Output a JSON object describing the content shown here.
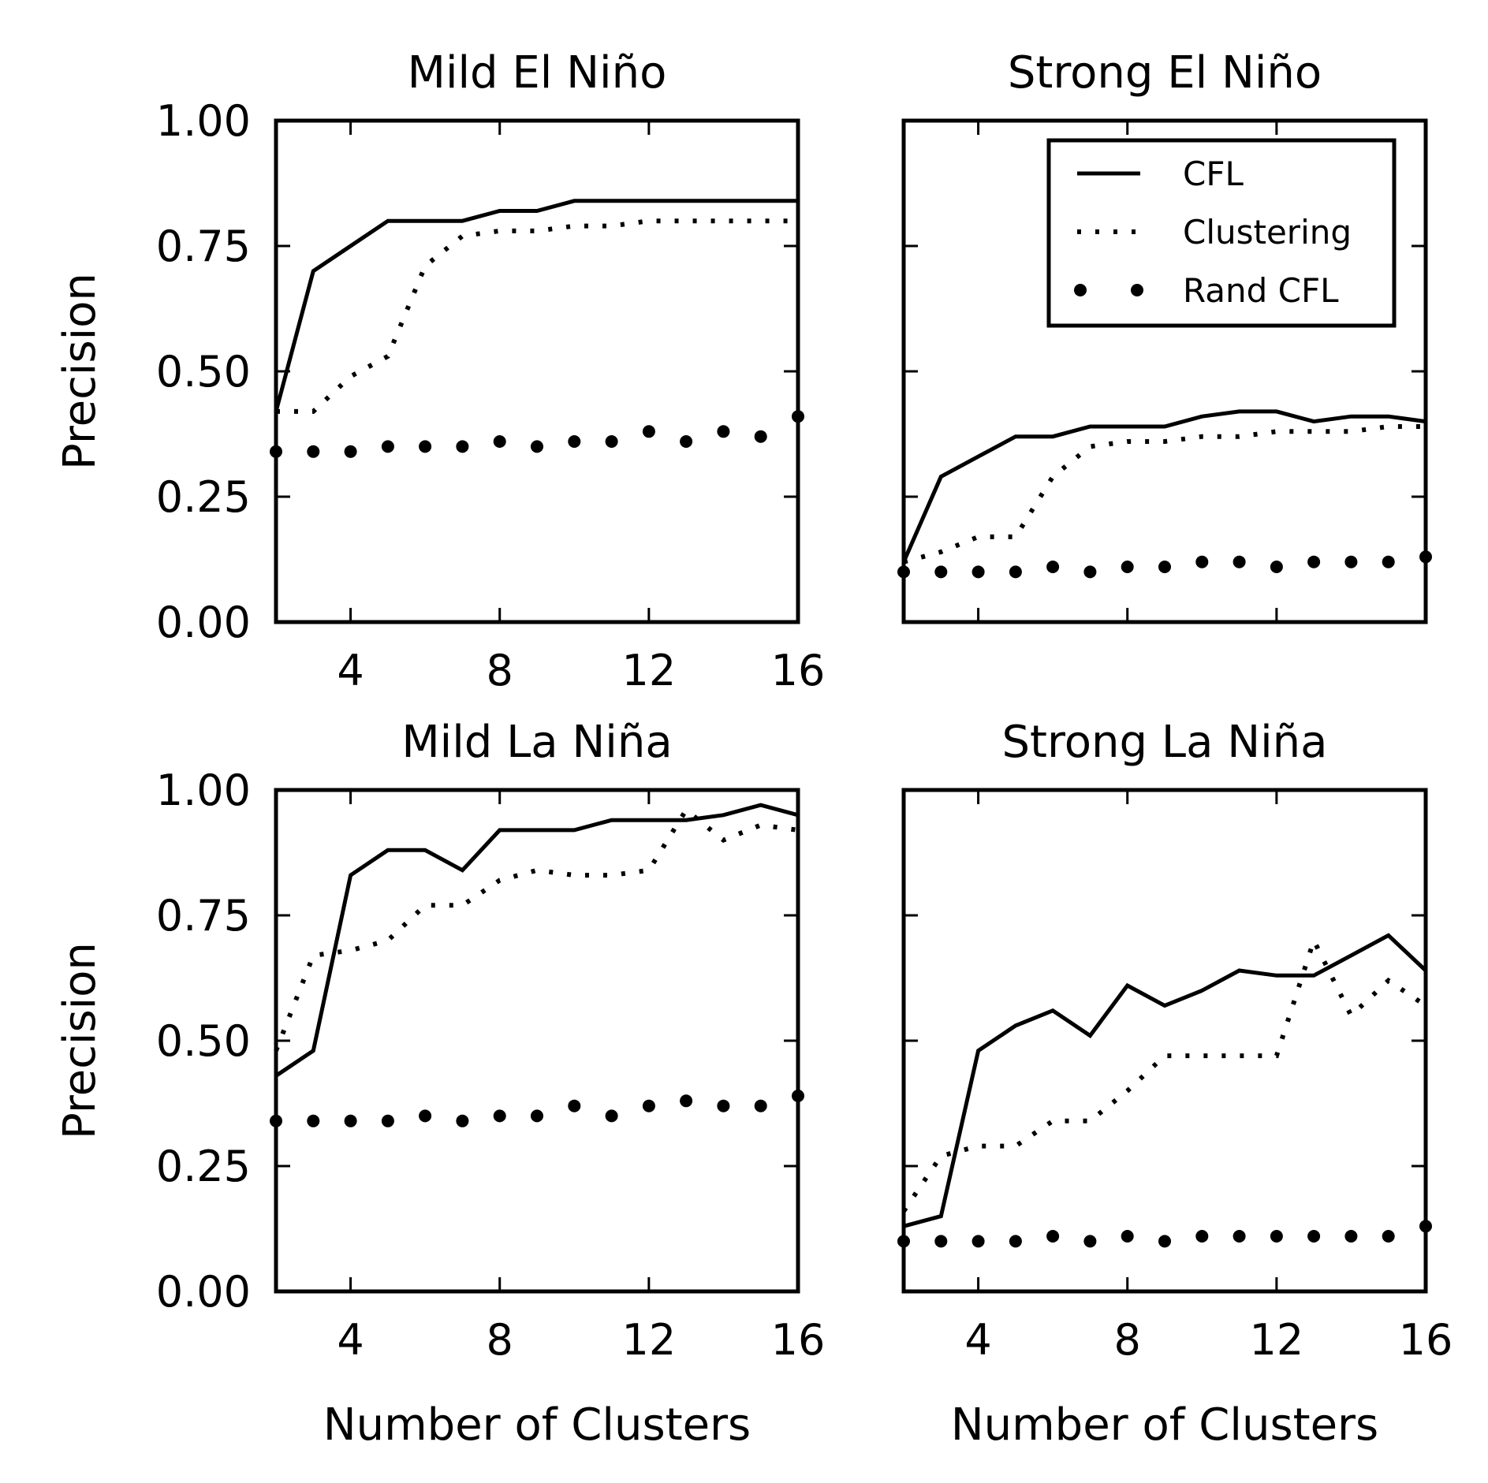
{
  "chart_data": [
    {
      "type": "line",
      "title": "Mild El Niño",
      "xlabel": "",
      "ylabel": "Precision",
      "xlim": [
        2,
        16
      ],
      "ylim": [
        0,
        1
      ],
      "xticks": [
        "4",
        "8",
        "12",
        "16"
      ],
      "yticks": [
        "0.00",
        "0.25",
        "0.50",
        "0.75",
        "1.00"
      ],
      "x": [
        2,
        3,
        4,
        5,
        6,
        7,
        8,
        9,
        10,
        11,
        12,
        13,
        14,
        15,
        16
      ],
      "series": [
        {
          "name": "CFL",
          "style": "solid",
          "values": [
            0.42,
            0.7,
            0.75,
            0.8,
            0.8,
            0.8,
            0.82,
            0.82,
            0.84,
            0.84,
            0.84,
            0.84,
            0.84,
            0.84,
            0.84
          ]
        },
        {
          "name": "Clustering",
          "style": "dotted",
          "values": [
            0.42,
            0.42,
            0.49,
            0.53,
            0.71,
            0.77,
            0.78,
            0.78,
            0.79,
            0.79,
            0.8,
            0.8,
            0.8,
            0.8,
            0.8
          ]
        },
        {
          "name": "Rand CFL",
          "style": "dots",
          "values": [
            0.34,
            0.34,
            0.34,
            0.35,
            0.35,
            0.35,
            0.36,
            0.35,
            0.36,
            0.36,
            0.38,
            0.36,
            0.38,
            0.37,
            0.41
          ]
        }
      ]
    },
    {
      "type": "line",
      "title": "Strong El Niño",
      "xlabel": "",
      "ylabel": "",
      "xlim": [
        2,
        16
      ],
      "ylim": [
        0,
        1
      ],
      "xticks": [],
      "yticks": [],
      "x": [
        2,
        3,
        4,
        5,
        6,
        7,
        8,
        9,
        10,
        11,
        12,
        13,
        14,
        15,
        16
      ],
      "legend": {
        "position": "top-right",
        "entries": [
          "CFL",
          "Clustering",
          "Rand CFL"
        ]
      },
      "series": [
        {
          "name": "CFL",
          "style": "solid",
          "values": [
            0.12,
            0.29,
            0.33,
            0.37,
            0.37,
            0.39,
            0.39,
            0.39,
            0.41,
            0.42,
            0.42,
            0.4,
            0.41,
            0.41,
            0.4
          ]
        },
        {
          "name": "Clustering",
          "style": "dotted",
          "values": [
            0.12,
            0.14,
            0.17,
            0.17,
            0.29,
            0.35,
            0.36,
            0.36,
            0.37,
            0.37,
            0.38,
            0.38,
            0.38,
            0.39,
            0.39
          ]
        },
        {
          "name": "Rand CFL",
          "style": "dots",
          "values": [
            0.1,
            0.1,
            0.1,
            0.1,
            0.11,
            0.1,
            0.11,
            0.11,
            0.12,
            0.12,
            0.11,
            0.12,
            0.12,
            0.12,
            0.13
          ]
        }
      ]
    },
    {
      "type": "line",
      "title": "Mild La Niña",
      "xlabel": "Number of Clusters",
      "ylabel": "Precision",
      "xlim": [
        2,
        16
      ],
      "ylim": [
        0,
        1
      ],
      "xticks": [
        "4",
        "8",
        "12",
        "16"
      ],
      "yticks": [
        "0.00",
        "0.25",
        "0.50",
        "0.75",
        "1.00"
      ],
      "x": [
        2,
        3,
        4,
        5,
        6,
        7,
        8,
        9,
        10,
        11,
        12,
        13,
        14,
        15,
        16
      ],
      "series": [
        {
          "name": "CFL",
          "style": "solid",
          "values": [
            0.43,
            0.48,
            0.83,
            0.88,
            0.88,
            0.84,
            0.92,
            0.92,
            0.92,
            0.94,
            0.94,
            0.94,
            0.95,
            0.97,
            0.95
          ]
        },
        {
          "name": "Clustering",
          "style": "dotted",
          "values": [
            0.48,
            0.67,
            0.68,
            0.7,
            0.77,
            0.77,
            0.82,
            0.84,
            0.83,
            0.83,
            0.84,
            0.96,
            0.9,
            0.93,
            0.92
          ]
        },
        {
          "name": "Rand CFL",
          "style": "dots",
          "values": [
            0.34,
            0.34,
            0.34,
            0.34,
            0.35,
            0.34,
            0.35,
            0.35,
            0.37,
            0.35,
            0.37,
            0.38,
            0.37,
            0.37,
            0.39
          ]
        }
      ]
    },
    {
      "type": "line",
      "title": "Strong La Niña",
      "xlabel": "Number of Clusters",
      "ylabel": "",
      "xlim": [
        2,
        16
      ],
      "ylim": [
        0,
        1
      ],
      "xticks": [
        "4",
        "8",
        "12",
        "16"
      ],
      "yticks": [],
      "x": [
        2,
        3,
        4,
        5,
        6,
        7,
        8,
        9,
        10,
        11,
        12,
        13,
        14,
        15,
        16
      ],
      "series": [
        {
          "name": "CFL",
          "style": "solid",
          "values": [
            0.13,
            0.15,
            0.48,
            0.53,
            0.56,
            0.51,
            0.61,
            0.57,
            0.6,
            0.64,
            0.63,
            0.63,
            0.67,
            0.71,
            0.64
          ]
        },
        {
          "name": "Clustering",
          "style": "dotted",
          "values": [
            0.16,
            0.27,
            0.29,
            0.29,
            0.34,
            0.34,
            0.4,
            0.47,
            0.47,
            0.47,
            0.47,
            0.7,
            0.55,
            0.62,
            0.57
          ]
        },
        {
          "name": "Rand CFL",
          "style": "dots",
          "values": [
            0.1,
            0.1,
            0.1,
            0.1,
            0.11,
            0.1,
            0.11,
            0.1,
            0.11,
            0.11,
            0.11,
            0.11,
            0.11,
            0.11,
            0.13
          ]
        }
      ]
    }
  ]
}
